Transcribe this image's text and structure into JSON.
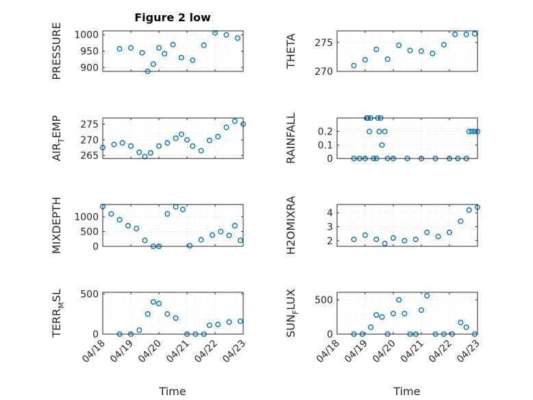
{
  "figure_title": "Figure 2 low",
  "xlabel": "Time",
  "x_ticks": [
    "04/18",
    "04/19",
    "04/20",
    "04/21",
    "04/22",
    "04/23"
  ],
  "marker_color": "#0072BD",
  "chart_data": [
    {
      "type": "scatter",
      "name": "pressure",
      "title": "Figure 2 low",
      "ylabel": "PRESSURE",
      "xlim": [
        "04/18",
        "04/23"
      ],
      "ylim": [
        888,
        1012
      ],
      "yticks": [
        900,
        950,
        1000
      ],
      "grid": true,
      "x": [
        0.6,
        1.0,
        1.4,
        1.6,
        1.8,
        2.0,
        2.2,
        2.5,
        2.8,
        3.2,
        3.6,
        4.0,
        4.4,
        4.8
      ],
      "y": [
        957,
        960,
        945,
        888,
        910,
        960,
        942,
        970,
        930,
        922,
        968,
        1006,
        1000,
        990
      ]
    },
    {
      "type": "scatter",
      "name": "theta",
      "title": "",
      "ylabel": "THETA",
      "xlim": [
        "04/18",
        "04/23"
      ],
      "ylim": [
        270,
        277
      ],
      "yticks": [
        270,
        275
      ],
      "grid": true,
      "x": [
        0.6,
        1.0,
        1.4,
        1.8,
        2.2,
        2.6,
        3.0,
        3.4,
        3.8,
        4.2,
        4.6,
        4.9
      ],
      "y": [
        271,
        272,
        273.8,
        272.1,
        274.5,
        273.6,
        273.5,
        273.1,
        274.6,
        276.4,
        276.4,
        276.5
      ]
    },
    {
      "type": "scatter",
      "name": "air_temp",
      "title": "",
      "ylabel": "AIR_TEMP",
      "xlim": [
        "04/18",
        "04/23"
      ],
      "ylim": [
        264,
        277
      ],
      "yticks": [
        265,
        270,
        275
      ],
      "grid": true,
      "x": [
        0.0,
        0.4,
        0.7,
        1.0,
        1.3,
        1.5,
        1.7,
        2.0,
        2.3,
        2.6,
        2.8,
        3.0,
        3.2,
        3.5,
        3.8,
        4.1,
        4.4,
        4.7,
        5.0
      ],
      "y": [
        267.5,
        268.5,
        269,
        268,
        266,
        264.6,
        265.8,
        268,
        269,
        270.5,
        271.8,
        270,
        268,
        266.5,
        269.8,
        271,
        274,
        276,
        275
      ]
    },
    {
      "type": "scatter",
      "name": "rainfall",
      "title": "",
      "ylabel": "RAINFALL",
      "xlim": [
        "04/18",
        "04/23"
      ],
      "ylim": [
        0,
        0.3
      ],
      "yticks": [
        0,
        0.1,
        0.2
      ],
      "grid": true,
      "x": [
        0.6,
        0.8,
        1.0,
        1.05,
        1.1,
        1.15,
        1.2,
        1.3,
        1.4,
        1.45,
        1.5,
        1.55,
        1.6,
        1.7,
        1.8,
        2.0,
        2.5,
        3.0,
        3.5,
        4.0,
        4.3,
        4.6,
        4.7,
        4.8,
        4.9,
        5.0
      ],
      "y": [
        0,
        0,
        0,
        0.3,
        0.3,
        0.2,
        0.3,
        0,
        0,
        0.3,
        0.2,
        0.3,
        0.1,
        0.2,
        0,
        0,
        0,
        0,
        0,
        0,
        0,
        0,
        0.2,
        0.2,
        0.2,
        0.2
      ]
    },
    {
      "type": "scatter",
      "name": "mixdepth",
      "title": "",
      "ylabel": "MIXDEPTH",
      "xlim": [
        "04/18",
        "04/23"
      ],
      "ylim": [
        0,
        1420
      ],
      "yticks": [
        0,
        500,
        1000
      ],
      "grid": true,
      "x": [
        0.0,
        0.3,
        0.6,
        0.9,
        1.2,
        1.5,
        1.8,
        2.0,
        2.3,
        2.6,
        2.85,
        3.1,
        3.5,
        3.9,
        4.2,
        4.5,
        4.7,
        4.9
      ],
      "y": [
        1350,
        1100,
        900,
        700,
        600,
        200,
        0,
        0,
        1100,
        1340,
        1250,
        20,
        220,
        380,
        500,
        370,
        700,
        200
      ]
    },
    {
      "type": "scatter",
      "name": "h2omixra",
      "title": "",
      "ylabel": "H2OMIXRA",
      "xlim": [
        "04/18",
        "04/23"
      ],
      "ylim": [
        1.6,
        4.6
      ],
      "yticks": [
        2,
        3,
        4
      ],
      "grid": true,
      "x": [
        0.6,
        1.0,
        1.4,
        1.7,
        2.0,
        2.4,
        2.8,
        3.2,
        3.6,
        4.0,
        4.4,
        4.7,
        5.0
      ],
      "y": [
        2.1,
        2.4,
        2.1,
        1.8,
        2.2,
        2.0,
        2.1,
        2.6,
        2.3,
        2.6,
        3.4,
        4.2,
        4.4
      ]
    },
    {
      "type": "scatter",
      "name": "terr_msl",
      "title": "",
      "ylabel": "TERR_MSL",
      "xlim": [
        "04/18",
        "04/23"
      ],
      "ylim": [
        0,
        520
      ],
      "yticks": [
        0,
        500
      ],
      "grid": true,
      "x": [
        0.6,
        1.0,
        1.3,
        1.6,
        1.8,
        2.0,
        2.3,
        2.6,
        3.0,
        3.3,
        3.6,
        3.8,
        4.1,
        4.5,
        4.9
      ],
      "y": [
        0,
        0,
        50,
        250,
        400,
        380,
        250,
        200,
        0,
        0,
        0,
        110,
        120,
        150,
        160
      ]
    },
    {
      "type": "scatter",
      "name": "sun_flux",
      "title": "",
      "ylabel": "SUN_FLUX",
      "xlim": [
        "04/18",
        "04/23"
      ],
      "ylim": [
        0,
        610
      ],
      "yticks": [
        0,
        500
      ],
      "grid": true,
      "x": [
        0.6,
        0.9,
        1.2,
        1.4,
        1.6,
        1.8,
        2.0,
        2.2,
        2.4,
        2.6,
        2.8,
        3.0,
        3.2,
        3.5,
        3.8,
        4.1,
        4.4,
        4.6,
        4.9
      ],
      "y": [
        0,
        0,
        100,
        280,
        250,
        0,
        300,
        500,
        300,
        0,
        0,
        350,
        560,
        0,
        0,
        0,
        170,
        100,
        0
      ]
    }
  ]
}
